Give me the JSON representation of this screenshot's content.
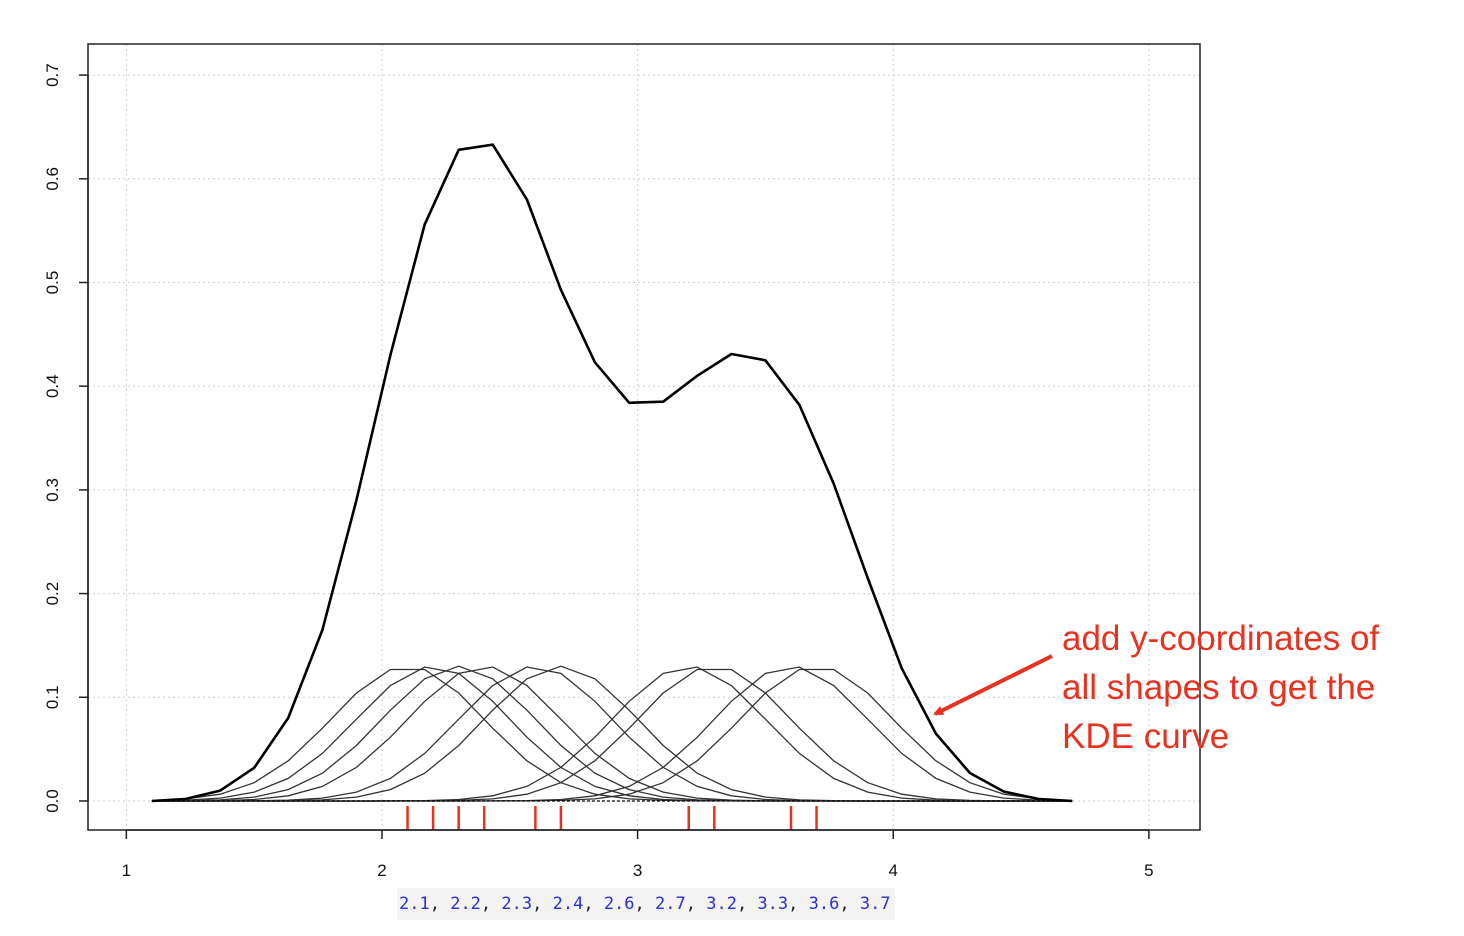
{
  "chart_data": {
    "type": "line",
    "title": "",
    "xlabel": "",
    "ylabel": "",
    "xlim": [
      0.85,
      5.2
    ],
    "ylim": [
      -0.028,
      0.73
    ],
    "x_ticks": [
      1,
      2,
      3,
      4,
      5
    ],
    "y_ticks": [
      0.0,
      0.1,
      0.2,
      0.3,
      0.4,
      0.5,
      0.6,
      0.7
    ],
    "x_tick_labels": [
      "1",
      "2",
      "3",
      "4",
      "5"
    ],
    "y_tick_labels": [
      "0.0",
      "0.1",
      "0.2",
      "0.3",
      "0.4",
      "0.5",
      "0.6",
      "0.7"
    ],
    "grid": true,
    "samples": [
      2.1,
      2.2,
      2.3,
      2.4,
      2.6,
      2.7,
      3.2,
      3.3,
      3.6,
      3.7
    ],
    "kernel_peak": 0.13,
    "kernel_bandwidth": 0.3,
    "kde_curve": {
      "x": [
        1.1,
        1.233,
        1.367,
        1.5,
        1.633,
        1.767,
        1.9,
        2.033,
        2.167,
        2.3,
        2.433,
        2.567,
        2.7,
        2.833,
        2.967,
        3.1,
        3.233,
        3.367,
        3.5,
        3.633,
        3.767,
        3.9,
        4.033,
        4.167,
        4.3,
        4.433,
        4.567,
        4.7
      ],
      "y": [
        0.0,
        0.002,
        0.01,
        0.032,
        0.08,
        0.165,
        0.29,
        0.43,
        0.556,
        0.628,
        0.633,
        0.58,
        0.493,
        0.423,
        0.384,
        0.385,
        0.41,
        0.431,
        0.425,
        0.382,
        0.306,
        0.215,
        0.128,
        0.065,
        0.027,
        0.009,
        0.002,
        0.0
      ]
    },
    "sample_strip": [
      "2.1",
      "2.2",
      "2.3",
      "2.4",
      "2.6",
      "2.7",
      "3.2",
      "3.3",
      "3.6",
      "3.7"
    ],
    "annotation": [
      "add y-coordinates of",
      "all shapes to get the",
      "KDE curve"
    ],
    "colors": {
      "kde": "#000000",
      "kernels": "#333333",
      "rug": "#e8321f",
      "annotation": "#e8321f",
      "numbers": "#2a2fd6",
      "grid": "#cfcfcf"
    }
  }
}
